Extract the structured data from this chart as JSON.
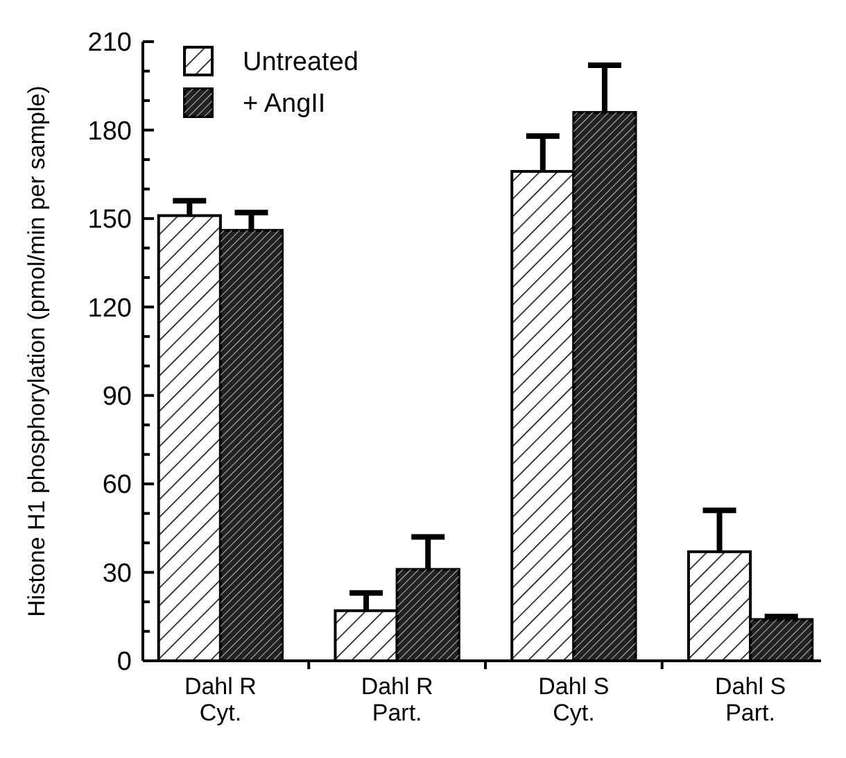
{
  "chart_data": {
    "type": "bar",
    "ylabel": "Histone H1 phosphorylation (pmol/min per sample)",
    "categories": [
      "Dahl R\nCyt.",
      "Dahl R\nPart.",
      "Dahl S\nCyt.",
      "Dahl S\nPart."
    ],
    "series": [
      {
        "name": "Untreated",
        "color": "#ffffff",
        "values": [
          151,
          17,
          166,
          37
        ],
        "errors": [
          [
            151,
            156
          ],
          [
            17,
            23
          ],
          [
            166,
            178
          ],
          [
            37,
            51
          ]
        ]
      },
      {
        "name": "+ AngII",
        "color": "#222222",
        "values": [
          146,
          31,
          186,
          14
        ],
        "errors": [
          [
            146,
            152
          ],
          [
            31,
            42
          ],
          [
            186,
            202
          ],
          [
            14,
            15
          ]
        ]
      }
    ],
    "ylim": [
      0,
      210
    ],
    "yticks": [
      0,
      {
        "value": 10,
        "label": null
      },
      {
        "value": 20,
        "label": null
      },
      30,
      {
        "value": 40,
        "label": null
      },
      {
        "value": 50,
        "label": null
      },
      60,
      {
        "value": 70,
        "label": null
      },
      {
        "value": 80,
        "label": null
      },
      90,
      {
        "value": 100,
        "label": null
      },
      {
        "value": 110,
        "label": null
      },
      120,
      {
        "value": 130,
        "label": null
      },
      {
        "value": 140,
        "label": null
      },
      150,
      {
        "value": 160,
        "label": null
      },
      {
        "value": 170,
        "label": null
      },
      180,
      {
        "value": 190,
        "label": null
      },
      {
        "value": 200,
        "label": null
      },
      210
    ],
    "grid": false,
    "legend": "top left"
  }
}
